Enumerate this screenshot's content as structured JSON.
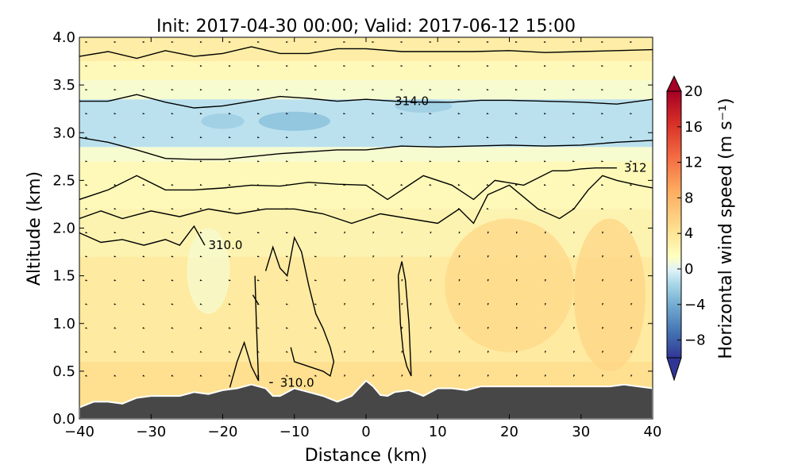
{
  "chart_data": {
    "type": "heatmap",
    "title": "Init: 2017-04-30 00:00; Valid: 2017-06-12 15:00",
    "xlabel": "Distance (km)",
    "ylabel": "Altitude (km)",
    "xlim": [
      -40,
      40
    ],
    "ylim": [
      0.0,
      4.0
    ],
    "xticks": [
      "−40",
      "−30",
      "−20",
      "−10",
      "0",
      "10",
      "20",
      "30",
      "40"
    ],
    "xtick_values": [
      -40,
      -30,
      -20,
      -10,
      0,
      10,
      20,
      30,
      40
    ],
    "yticks": [
      "0.0",
      "0.5",
      "1.0",
      "1.5",
      "2.0",
      "2.5",
      "3.0",
      "3.5",
      "4.0"
    ],
    "ytick_values": [
      0.0,
      0.5,
      1.0,
      1.5,
      2.0,
      2.5,
      3.0,
      3.5,
      4.0
    ],
    "colorbar": {
      "label": "Horizontal wind speed (m s⁻¹)",
      "range": [
        -10,
        20
      ],
      "ticks": [
        "20",
        "16",
        "12",
        "8",
        "4",
        "0",
        "−4",
        "−8"
      ],
      "tick_values": [
        20,
        16,
        12,
        8,
        4,
        0,
        -4,
        -8
      ],
      "colormap": "RdYlBu_r",
      "extend": "both"
    },
    "terrain": {
      "color": "#474747",
      "x": [
        -40,
        -38,
        -36,
        -34,
        -32,
        -30,
        -28,
        -26,
        -24,
        -22,
        -20,
        -18,
        -16,
        -14,
        -13,
        -12,
        -10,
        -8,
        -6,
        -4,
        -2,
        0,
        1,
        2,
        3,
        4,
        6,
        8,
        10,
        12,
        14,
        16,
        20,
        25,
        30,
        34,
        36,
        38,
        40
      ],
      "y": [
        0.12,
        0.18,
        0.18,
        0.16,
        0.22,
        0.24,
        0.24,
        0.24,
        0.28,
        0.26,
        0.3,
        0.32,
        0.36,
        0.32,
        0.24,
        0.24,
        0.32,
        0.28,
        0.24,
        0.18,
        0.24,
        0.4,
        0.34,
        0.25,
        0.24,
        0.28,
        0.3,
        0.24,
        0.32,
        0.32,
        0.3,
        0.34,
        0.34,
        0.34,
        0.34,
        0.34,
        0.36,
        0.34,
        0.32
      ]
    },
    "wind_field": [
      {
        "z_min": 0.0,
        "z_max": 0.6,
        "value": 2.5
      },
      {
        "z_min": 0.6,
        "z_max": 1.7,
        "value": 2.0
      },
      {
        "z_min": 1.7,
        "z_max": 2.2,
        "value": 1.5
      },
      {
        "z_min": 2.2,
        "z_max": 2.7,
        "value": 1.0
      },
      {
        "z_min": 2.7,
        "z_max": 2.85,
        "value": 0.2
      },
      {
        "z_min": 2.85,
        "z_max": 3.35,
        "value": -1.2
      },
      {
        "z_min": 3.35,
        "z_max": 3.55,
        "value": 0.2
      },
      {
        "z_min": 3.55,
        "z_max": 3.75,
        "value": 1.0
      },
      {
        "z_min": 3.75,
        "z_max": 4.0,
        "value": 1.8
      }
    ],
    "wind_patches": [
      {
        "x": -22,
        "z": 1.55,
        "rx": 3,
        "rz": 0.45,
        "value": 0.2
      },
      {
        "x": -10,
        "z": 3.12,
        "rx": 5,
        "rz": 0.1,
        "value": -2.5
      },
      {
        "x": -20,
        "z": 3.12,
        "rx": 3,
        "rz": 0.08,
        "value": -2.0
      },
      {
        "x": 8,
        "z": 3.28,
        "rx": 4,
        "rz": 0.07,
        "value": -2.0
      },
      {
        "x": 20,
        "z": 1.4,
        "rx": 9,
        "rz": 0.7,
        "value": 3.2
      },
      {
        "x": 34,
        "z": 1.3,
        "rx": 5,
        "rz": 0.8,
        "value": 3.4
      }
    ],
    "theta_contours": [
      {
        "label": "",
        "x": [
          -40,
          -36,
          -32,
          -28,
          -24,
          -20,
          -16,
          -12,
          -8,
          -4,
          0,
          5,
          10,
          15,
          20,
          25,
          30,
          35,
          40
        ],
        "y": [
          3.8,
          3.85,
          3.78,
          3.86,
          3.8,
          3.83,
          3.9,
          3.83,
          3.83,
          3.88,
          3.88,
          3.85,
          3.85,
          3.85,
          3.86,
          3.84,
          3.85,
          3.86,
          3.87
        ]
      },
      {
        "label": "314.0",
        "label_x": 4,
        "x": [
          -40,
          -36,
          -32,
          -28,
          -24,
          -20,
          -16,
          -12,
          -8,
          -4,
          0,
          4,
          8,
          12,
          16,
          20,
          25,
          30,
          35,
          40
        ],
        "y": [
          3.33,
          3.33,
          3.4,
          3.32,
          3.26,
          3.28,
          3.33,
          3.38,
          3.36,
          3.33,
          3.35,
          3.33,
          3.32,
          3.32,
          3.34,
          3.34,
          3.33,
          3.32,
          3.3,
          3.35
        ]
      },
      {
        "label": "",
        "x": [
          -40,
          -36,
          -32,
          -28,
          -24,
          -20,
          -16,
          -12,
          -8,
          -4,
          0,
          5,
          10,
          15,
          20,
          25,
          30,
          35,
          40
        ],
        "y": [
          2.95,
          2.9,
          2.82,
          2.73,
          2.72,
          2.72,
          2.75,
          2.78,
          2.8,
          2.82,
          2.82,
          2.86,
          2.85,
          2.86,
          2.87,
          2.86,
          2.87,
          2.9,
          2.92
        ]
      },
      {
        "label": "312",
        "label_x": 36,
        "x": [
          -40,
          -36,
          -32,
          -28,
          -24,
          -20,
          -16,
          -12,
          -8,
          -4,
          0,
          3,
          5,
          8,
          12,
          15,
          18,
          22,
          26,
          28,
          30,
          32,
          35
        ],
        "y": [
          2.3,
          2.4,
          2.55,
          2.4,
          2.4,
          2.42,
          2.45,
          2.44,
          2.48,
          2.46,
          2.45,
          2.3,
          2.4,
          2.55,
          2.45,
          2.3,
          2.5,
          2.45,
          2.6,
          2.6,
          2.62,
          2.63,
          2.63
        ]
      },
      {
        "label": "",
        "x": [
          -40,
          -37,
          -34,
          -30,
          -26,
          -22,
          -18,
          -14,
          -10,
          -6,
          -2,
          2,
          6,
          10,
          13,
          15,
          17,
          20,
          24,
          27,
          29,
          31,
          33,
          35,
          38,
          40
        ],
        "y": [
          2.1,
          2.18,
          2.1,
          2.18,
          2.12,
          2.2,
          2.15,
          2.2,
          2.2,
          2.15,
          2.05,
          2.15,
          2.1,
          2.05,
          2.2,
          2.05,
          2.35,
          2.45,
          2.2,
          2.1,
          2.2,
          2.4,
          2.55,
          2.5,
          2.45,
          2.42
        ]
      },
      {
        "label": "310.0",
        "label_x": -22,
        "x": [
          -40,
          -37,
          -34,
          -31,
          -28,
          -26,
          -24,
          -22.5
        ],
        "y": [
          1.95,
          1.85,
          1.88,
          1.82,
          1.88,
          1.82,
          2.02,
          1.82
        ]
      },
      {
        "label": "",
        "x": [
          -19,
          -18,
          -17,
          -16,
          -15,
          -15.3,
          -15.5
        ],
        "y": [
          0.33,
          0.6,
          0.8,
          0.55,
          0.4,
          1.0,
          1.5
        ]
      },
      {
        "label": "",
        "x": [
          -15.8,
          -15
        ],
        "y": [
          1.3,
          1.2
        ]
      },
      {
        "label": "",
        "x": [
          -14,
          -13,
          -12,
          -11,
          -10,
          -9,
          -8,
          -7,
          -6,
          -5,
          -4.5,
          -5,
          -6,
          -8,
          -10,
          -10.5
        ],
        "y": [
          1.55,
          1.8,
          1.58,
          1.5,
          1.9,
          1.75,
          1.4,
          1.1,
          0.95,
          0.75,
          0.6,
          0.45,
          0.5,
          0.55,
          0.6,
          0.75
        ]
      },
      {
        "label": "",
        "x": [
          4.5,
          5,
          5.5,
          6,
          6.3,
          5.7,
          5.2,
          4.8,
          4.5
        ],
        "y": [
          1.5,
          1.65,
          1.45,
          1.0,
          0.45,
          0.55,
          0.7,
          1.0,
          1.5
        ]
      },
      {
        "label": "310.0",
        "label_x": -12,
        "x": [
          -13.5,
          -13
        ],
        "y": [
          0.38,
          0.38
        ]
      }
    ]
  }
}
